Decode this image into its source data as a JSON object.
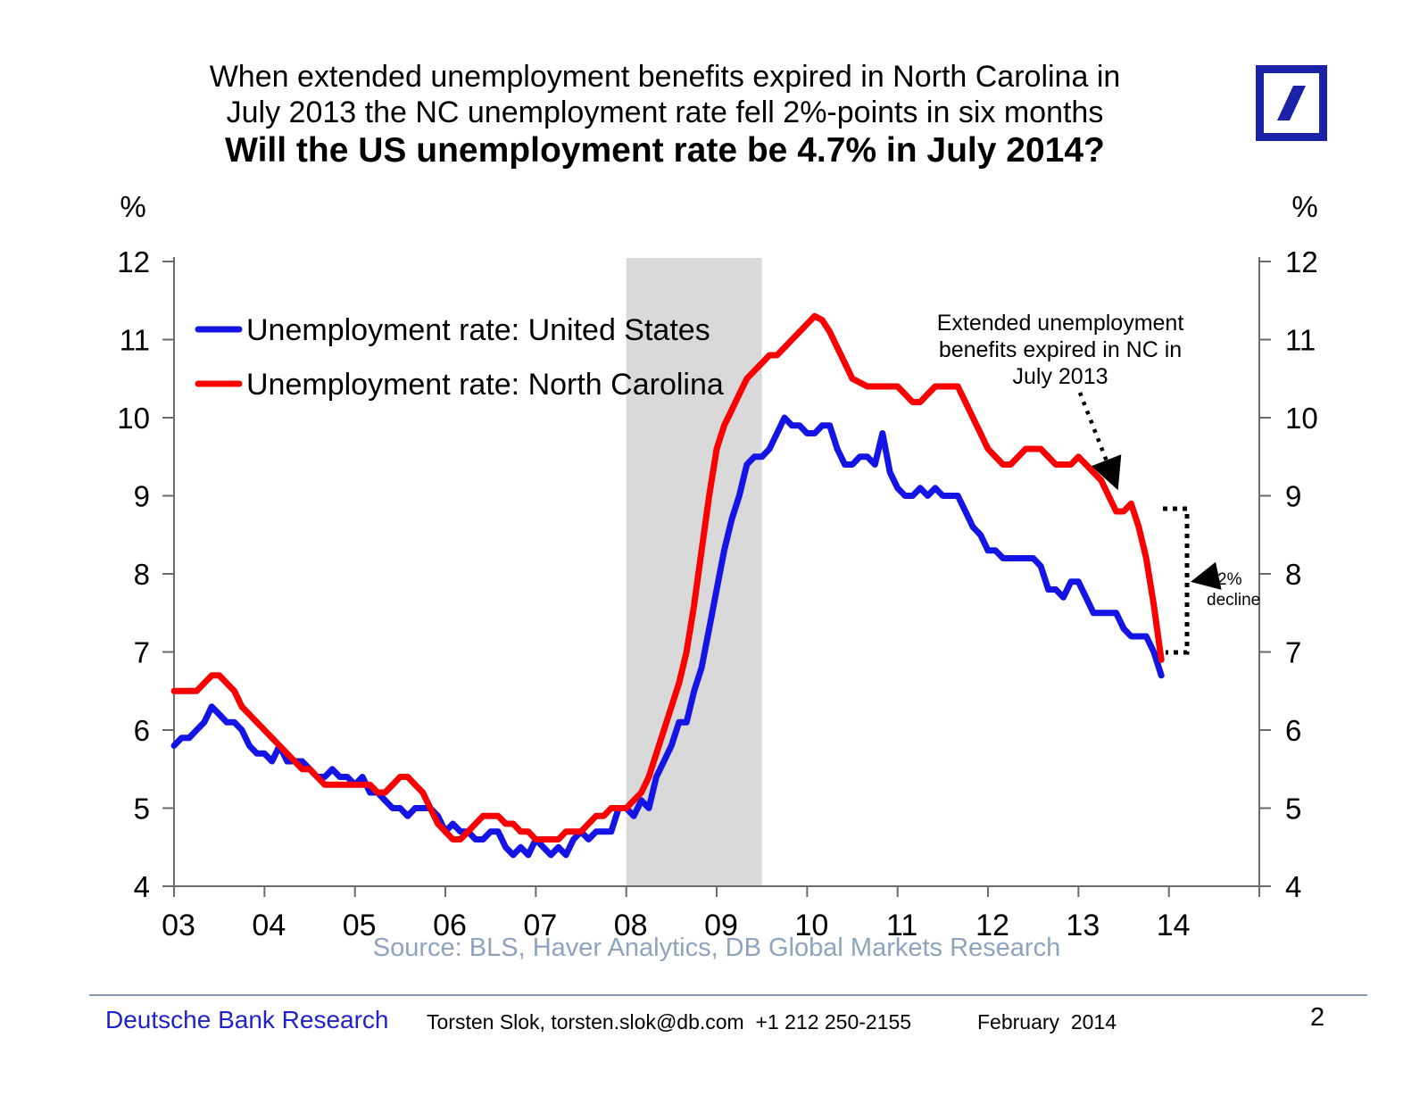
{
  "title": {
    "line1": "When extended unemployment benefits expired in North Carolina in",
    "line2": "July 2013 the NC unemployment rate fell 2%-points in six months",
    "line3": "Will the US unemployment rate be 4.7% in July 2014?"
  },
  "logo": {
    "name": "Deutsche Bank",
    "color": "#1A22A8"
  },
  "chart_data": {
    "type": "line",
    "y_axis_unit": "%",
    "ylim": [
      4,
      12
    ],
    "y_ticks": [
      4,
      5,
      6,
      7,
      8,
      9,
      10,
      11,
      12
    ],
    "x_range": [
      2003,
      2015
    ],
    "x_tick_labels": [
      "03",
      "04",
      "05",
      "06",
      "07",
      "08",
      "09",
      "10",
      "11",
      "12",
      "13",
      "14"
    ],
    "grid": false,
    "legend_position": "inside-top-left",
    "shaded_region": {
      "from_year": 2008.0,
      "to_year": 2009.5,
      "color": "#D9D9D9"
    },
    "series": [
      {
        "name": "Unemployment rate: United States",
        "color": "#1414E6",
        "start_year": 2003,
        "start_month": 1,
        "frequency": "monthly",
        "values": [
          5.8,
          5.9,
          5.9,
          6.0,
          6.1,
          6.3,
          6.2,
          6.1,
          6.1,
          6.0,
          5.8,
          5.7,
          5.7,
          5.6,
          5.8,
          5.6,
          5.6,
          5.6,
          5.5,
          5.4,
          5.4,
          5.5,
          5.4,
          5.4,
          5.3,
          5.4,
          5.2,
          5.2,
          5.1,
          5.0,
          5.0,
          4.9,
          5.0,
          5.0,
          5.0,
          4.9,
          4.7,
          4.8,
          4.7,
          4.7,
          4.6,
          4.6,
          4.7,
          4.7,
          4.5,
          4.4,
          4.5,
          4.4,
          4.6,
          4.5,
          4.4,
          4.5,
          4.4,
          4.6,
          4.7,
          4.6,
          4.7,
          4.7,
          4.7,
          5.0,
          5.0,
          4.9,
          5.1,
          5.0,
          5.4,
          5.6,
          5.8,
          6.1,
          6.1,
          6.5,
          6.8,
          7.3,
          7.8,
          8.3,
          8.7,
          9.0,
          9.4,
          9.5,
          9.5,
          9.6,
          9.8,
          10.0,
          9.9,
          9.9,
          9.8,
          9.8,
          9.9,
          9.9,
          9.6,
          9.4,
          9.4,
          9.5,
          9.5,
          9.4,
          9.8,
          9.3,
          9.1,
          9.0,
          9.0,
          9.1,
          9.0,
          9.1,
          9.0,
          9.0,
          9.0,
          8.8,
          8.6,
          8.5,
          8.3,
          8.3,
          8.2,
          8.2,
          8.2,
          8.2,
          8.2,
          8.1,
          7.8,
          7.8,
          7.7,
          7.9,
          7.9,
          7.7,
          7.5,
          7.5,
          7.5,
          7.5,
          7.3,
          7.2,
          7.2,
          7.2,
          7.0,
          6.7
        ]
      },
      {
        "name": "Unemployment rate: North Carolina",
        "color": "#FB0000",
        "start_year": 2003,
        "start_month": 1,
        "frequency": "monthly",
        "values": [
          6.5,
          6.5,
          6.5,
          6.5,
          6.6,
          6.7,
          6.7,
          6.6,
          6.5,
          6.3,
          6.2,
          6.1,
          6.0,
          5.9,
          5.8,
          5.7,
          5.6,
          5.5,
          5.5,
          5.4,
          5.3,
          5.3,
          5.3,
          5.3,
          5.3,
          5.3,
          5.3,
          5.2,
          5.2,
          5.3,
          5.4,
          5.4,
          5.3,
          5.2,
          5.0,
          4.8,
          4.7,
          4.6,
          4.6,
          4.7,
          4.8,
          4.9,
          4.9,
          4.9,
          4.8,
          4.8,
          4.7,
          4.7,
          4.6,
          4.6,
          4.6,
          4.6,
          4.7,
          4.7,
          4.7,
          4.8,
          4.9,
          4.9,
          5.0,
          5.0,
          5.0,
          5.1,
          5.2,
          5.4,
          5.7,
          6.0,
          6.3,
          6.6,
          7.0,
          7.6,
          8.3,
          9.0,
          9.6,
          9.9,
          10.1,
          10.3,
          10.5,
          10.6,
          10.7,
          10.8,
          10.8,
          10.9,
          11.0,
          11.1,
          11.2,
          11.3,
          11.25,
          11.1,
          10.9,
          10.7,
          10.5,
          10.45,
          10.4,
          10.4,
          10.4,
          10.4,
          10.4,
          10.3,
          10.2,
          10.2,
          10.3,
          10.4,
          10.4,
          10.4,
          10.4,
          10.2,
          10.0,
          9.8,
          9.6,
          9.5,
          9.4,
          9.4,
          9.5,
          9.6,
          9.6,
          9.6,
          9.5,
          9.4,
          9.4,
          9.4,
          9.5,
          9.4,
          9.3,
          9.2,
          9.0,
          8.8,
          8.8,
          8.9,
          8.6,
          8.2,
          7.6,
          6.9
        ]
      }
    ],
    "annotations": {
      "expired": {
        "line1": "Extended unemployment",
        "line2": "benefits expired in NC in",
        "line3": "July 2013",
        "arrow_to": {
          "year": 2013.55,
          "value": 8.9
        }
      },
      "decline": {
        "label_line1": "2%",
        "label_line2": "decline",
        "bracket_top_value": 8.85,
        "bracket_bottom_value": 6.95
      }
    }
  },
  "source_note": "Source: BLS, Haver Analytics, DB Global Markets Research",
  "footer": {
    "brand": "Deutsche Bank Research",
    "contact": "Torsten Slok, torsten.slok@db.com  +1 212 250-2155",
    "date": "February  2014",
    "page_number": "2"
  }
}
